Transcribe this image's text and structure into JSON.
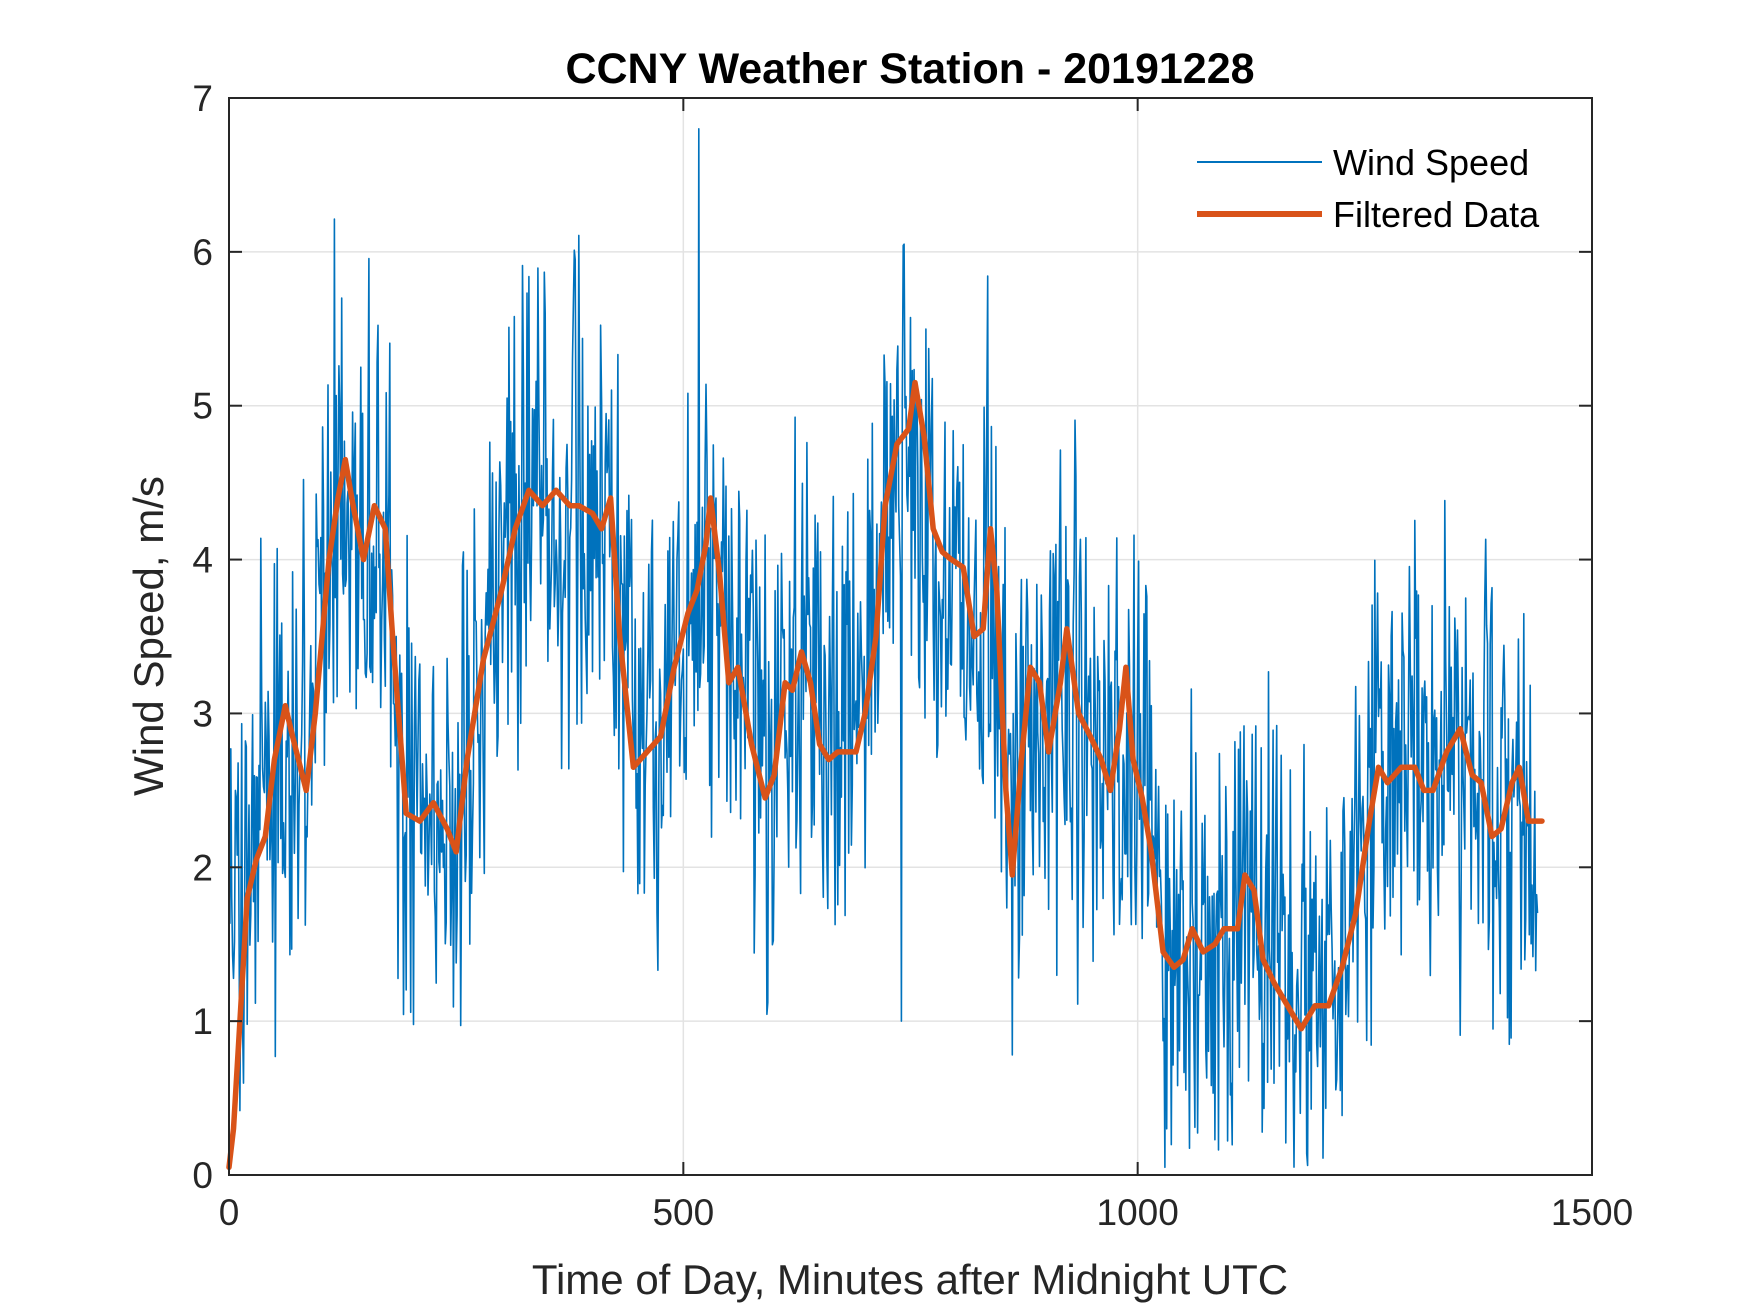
{
  "chart_data": {
    "type": "line",
    "title": "CCNY Weather Station - 20191228",
    "xlabel": "Time of Day, Minutes after Midnight UTC",
    "ylabel": "Wind Speed, m/s",
    "xlim": [
      0,
      1500
    ],
    "ylim": [
      0,
      7
    ],
    "xticks": [
      0,
      500,
      1000,
      1500
    ],
    "yticks": [
      0,
      1,
      2,
      3,
      4,
      5,
      6,
      7
    ],
    "grid": true,
    "legend_position": "top-right",
    "colors": {
      "raw": "#0072BD",
      "filtered": "#D95319",
      "grid": "#e3e3e3",
      "axis": "#262626"
    },
    "series": [
      {
        "name": "Wind Speed",
        "style": "thin",
        "anchors": [
          [
            0,
            1.9
          ],
          [
            20,
            2.1
          ],
          [
            40,
            2.5
          ],
          [
            60,
            2.8
          ],
          [
            80,
            2.7
          ],
          [
            100,
            3.6
          ],
          [
            120,
            4.5
          ],
          [
            140,
            4.4
          ],
          [
            160,
            4.1
          ],
          [
            180,
            3.8
          ],
          [
            190,
            2.5
          ],
          [
            210,
            2.3
          ],
          [
            230,
            2.3
          ],
          [
            250,
            2.2
          ],
          [
            270,
            3.2
          ],
          [
            290,
            3.6
          ],
          [
            310,
            4.1
          ],
          [
            330,
            4.4
          ],
          [
            360,
            4.3
          ],
          [
            400,
            4.3
          ],
          [
            420,
            4.2
          ],
          [
            440,
            2.9
          ],
          [
            460,
            2.8
          ],
          [
            480,
            3.0
          ],
          [
            500,
            3.4
          ],
          [
            520,
            3.8
          ],
          [
            540,
            3.6
          ],
          [
            560,
            3.1
          ],
          [
            580,
            3.0
          ],
          [
            600,
            2.5
          ],
          [
            620,
            3.1
          ],
          [
            640,
            3.3
          ],
          [
            660,
            2.8
          ],
          [
            680,
            2.8
          ],
          [
            700,
            3.1
          ],
          [
            720,
            4.4
          ],
          [
            740,
            4.8
          ],
          [
            760,
            4.6
          ],
          [
            780,
            4.0
          ],
          [
            800,
            3.9
          ],
          [
            820,
            3.6
          ],
          [
            840,
            4.0
          ],
          [
            860,
            2.2
          ],
          [
            880,
            3.2
          ],
          [
            900,
            2.8
          ],
          [
            920,
            3.4
          ],
          [
            940,
            2.9
          ],
          [
            960,
            2.8
          ],
          [
            980,
            2.6
          ],
          [
            1000,
            3.0
          ],
          [
            1020,
            2.2
          ],
          [
            1040,
            1.4
          ],
          [
            1060,
            1.4
          ],
          [
            1080,
            1.5
          ],
          [
            1100,
            1.7
          ],
          [
            1120,
            1.9
          ],
          [
            1140,
            1.4
          ],
          [
            1160,
            1.2
          ],
          [
            1180,
            1.0
          ],
          [
            1200,
            1.1
          ],
          [
            1220,
            1.4
          ],
          [
            1240,
            2.0
          ],
          [
            1260,
            2.6
          ],
          [
            1280,
            2.6
          ],
          [
            1300,
            2.7
          ],
          [
            1320,
            2.6
          ],
          [
            1340,
            2.8
          ],
          [
            1360,
            2.7
          ],
          [
            1380,
            2.4
          ],
          [
            1400,
            2.3
          ],
          [
            1420,
            2.6
          ],
          [
            1440,
            2.2
          ]
        ],
        "noise_amplitude": 0.75,
        "sampling_minutes": 1,
        "peak_points": [
          [
            517,
            6.8
          ],
          [
            740,
            6.3
          ],
          [
            124,
            5.7
          ],
          [
            740,
            1.0
          ],
          [
            1030,
            0.05
          ],
          [
            1032,
            0.3
          ]
        ]
      },
      {
        "name": "Filtered Data",
        "style": "thick",
        "points": [
          [
            0,
            0.05
          ],
          [
            5,
            0.3
          ],
          [
            10,
            0.8
          ],
          [
            20,
            1.8
          ],
          [
            30,
            2.05
          ],
          [
            40,
            2.2
          ],
          [
            50,
            2.7
          ],
          [
            62,
            3.05
          ],
          [
            70,
            2.85
          ],
          [
            85,
            2.5
          ],
          [
            95,
            3.0
          ],
          [
            110,
            4.0
          ],
          [
            120,
            4.4
          ],
          [
            128,
            4.65
          ],
          [
            135,
            4.4
          ],
          [
            148,
            4.0
          ],
          [
            160,
            4.35
          ],
          [
            172,
            4.2
          ],
          [
            180,
            3.5
          ],
          [
            195,
            2.35
          ],
          [
            210,
            2.3
          ],
          [
            225,
            2.42
          ],
          [
            240,
            2.25
          ],
          [
            250,
            2.1
          ],
          [
            262,
            2.7
          ],
          [
            280,
            3.35
          ],
          [
            300,
            3.8
          ],
          [
            315,
            4.2
          ],
          [
            330,
            4.45
          ],
          [
            345,
            4.35
          ],
          [
            360,
            4.45
          ],
          [
            375,
            4.35
          ],
          [
            385,
            4.35
          ],
          [
            400,
            4.3
          ],
          [
            410,
            4.2
          ],
          [
            420,
            4.4
          ],
          [
            430,
            3.5
          ],
          [
            445,
            2.65
          ],
          [
            460,
            2.75
          ],
          [
            475,
            2.85
          ],
          [
            490,
            3.3
          ],
          [
            505,
            3.65
          ],
          [
            515,
            3.8
          ],
          [
            525,
            4.1
          ],
          [
            530,
            4.4
          ],
          [
            540,
            3.9
          ],
          [
            550,
            3.2
          ],
          [
            560,
            3.3
          ],
          [
            575,
            2.8
          ],
          [
            590,
            2.45
          ],
          [
            600,
            2.6
          ],
          [
            612,
            3.2
          ],
          [
            620,
            3.15
          ],
          [
            630,
            3.4
          ],
          [
            640,
            3.2
          ],
          [
            650,
            2.8
          ],
          [
            660,
            2.7
          ],
          [
            670,
            2.75
          ],
          [
            690,
            2.75
          ],
          [
            700,
            3.0
          ],
          [
            712,
            3.5
          ],
          [
            722,
            4.35
          ],
          [
            735,
            4.75
          ],
          [
            748,
            4.85
          ],
          [
            755,
            5.15
          ],
          [
            765,
            4.8
          ],
          [
            775,
            4.2
          ],
          [
            785,
            4.05
          ],
          [
            795,
            4.0
          ],
          [
            808,
            3.95
          ],
          [
            820,
            3.5
          ],
          [
            830,
            3.55
          ],
          [
            838,
            4.2
          ],
          [
            845,
            3.8
          ],
          [
            855,
            2.5
          ],
          [
            862,
            1.95
          ],
          [
            872,
            2.7
          ],
          [
            882,
            3.3
          ],
          [
            892,
            3.2
          ],
          [
            902,
            2.75
          ],
          [
            915,
            3.2
          ],
          [
            922,
            3.55
          ],
          [
            935,
            3.0
          ],
          [
            948,
            2.85
          ],
          [
            960,
            2.7
          ],
          [
            970,
            2.5
          ],
          [
            980,
            2.9
          ],
          [
            987,
            3.3
          ],
          [
            995,
            2.7
          ],
          [
            1005,
            2.45
          ],
          [
            1015,
            2.1
          ],
          [
            1028,
            1.45
          ],
          [
            1040,
            1.35
          ],
          [
            1050,
            1.4
          ],
          [
            1060,
            1.6
          ],
          [
            1072,
            1.45
          ],
          [
            1085,
            1.5
          ],
          [
            1095,
            1.6
          ],
          [
            1110,
            1.6
          ],
          [
            1118,
            1.95
          ],
          [
            1128,
            1.85
          ],
          [
            1138,
            1.4
          ],
          [
            1150,
            1.25
          ],
          [
            1165,
            1.1
          ],
          [
            1180,
            0.95
          ],
          [
            1195,
            1.1
          ],
          [
            1210,
            1.1
          ],
          [
            1225,
            1.35
          ],
          [
            1240,
            1.7
          ],
          [
            1255,
            2.3
          ],
          [
            1265,
            2.65
          ],
          [
            1275,
            2.55
          ],
          [
            1290,
            2.65
          ],
          [
            1305,
            2.65
          ],
          [
            1315,
            2.5
          ],
          [
            1325,
            2.5
          ],
          [
            1340,
            2.75
          ],
          [
            1355,
            2.9
          ],
          [
            1368,
            2.6
          ],
          [
            1378,
            2.55
          ],
          [
            1390,
            2.2
          ],
          [
            1400,
            2.25
          ],
          [
            1412,
            2.55
          ],
          [
            1420,
            2.65
          ],
          [
            1430,
            2.3
          ],
          [
            1440,
            2.3
          ],
          [
            1445,
            2.3
          ]
        ]
      }
    ]
  }
}
